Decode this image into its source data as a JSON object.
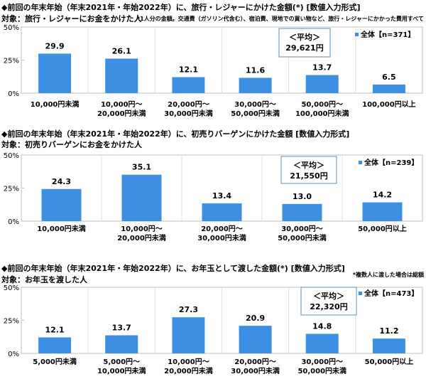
{
  "colors": {
    "bar": "#3d8fe3",
    "grid": "#bfbfbf",
    "box": "#5b8fb0"
  },
  "chart_data": [
    {
      "type": "bar",
      "title": "◆前回の年末年始（年末2021年・年始2022年）に、旅行・レジャーにかけた金額(*) [数値入力形式]",
      "subtitle": "対象：旅行・レジャーにお金をかけた人",
      "note": "*1人分の金額。交通費（ガソリン代含む）、宿泊費、現地での買い物など、旅行・レジャーにかかった費用すべて",
      "categories": [
        [
          "10,000円未満"
        ],
        [
          "10,000円～",
          "20,000円未満"
        ],
        [
          "20,000円～",
          "30,000円未満"
        ],
        [
          "30,000円～",
          "50,000円未満"
        ],
        [
          "50,000円～",
          "100,000円未満"
        ],
        [
          "100,000円以上"
        ]
      ],
      "series": [
        {
          "name": "全体【n=371】",
          "values": [
            29.9,
            26.1,
            12.1,
            11.6,
            13.7,
            6.5
          ]
        }
      ],
      "average_label": "＜平均＞",
      "average_value": "29,621円",
      "yticks": [
        "0%",
        "25%",
        "50%"
      ],
      "ylim": [
        0,
        50
      ],
      "grid": true,
      "legend": "top-right"
    },
    {
      "type": "bar",
      "title": "◆前回の年末年始（年末2021年・年始2022年）に、初売りバーゲンにかけた金額 [数値入力形式]",
      "subtitle": "対象：初売りバーゲンにお金をかけた人",
      "note": "",
      "categories": [
        [
          "10,000円未満"
        ],
        [
          "10,000円～",
          "20,000円未満"
        ],
        [
          "20,000円～",
          "30,000円未満"
        ],
        [
          "30,000円～",
          "50,000円未満"
        ],
        [
          "50,000円以上"
        ]
      ],
      "series": [
        {
          "name": "全体【n=239】",
          "values": [
            24.3,
            35.1,
            13.4,
            13.0,
            14.2
          ]
        }
      ],
      "average_label": "＜平均＞",
      "average_value": "21,550円",
      "yticks": [
        "0%",
        "25%",
        "50%"
      ],
      "ylim": [
        0,
        50
      ],
      "grid": true,
      "legend": "top-right"
    },
    {
      "type": "bar",
      "title": "◆前回の年末年始（年末2021年・年始2022年）に、お年玉として渡した金額(*) [数値入力形式]",
      "subtitle": "対象：お年玉を渡した人",
      "note": "*複数人に渡した場合は総額",
      "categories": [
        [
          "5,000円未満"
        ],
        [
          "5,000円～",
          "10,000円未満"
        ],
        [
          "10,000円～",
          "20,000円未満"
        ],
        [
          "20,000円～",
          "30,000円未満"
        ],
        [
          "30,000円～",
          "50,000円未満"
        ],
        [
          "50,000円以上"
        ]
      ],
      "series": [
        {
          "name": "全体【n=473】",
          "values": [
            12.1,
            13.7,
            27.3,
            20.9,
            14.8,
            11.2
          ]
        }
      ],
      "average_label": "＜平均＞",
      "average_value": "22,320円",
      "yticks": [
        "0%",
        "25%",
        "50%"
      ],
      "ylim": [
        0,
        50
      ],
      "grid": true,
      "legend": "top-right"
    }
  ]
}
